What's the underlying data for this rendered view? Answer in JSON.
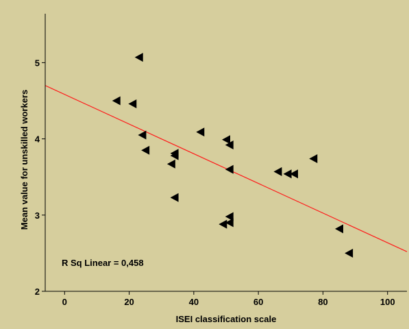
{
  "colors": {
    "background": "#d6ce9d",
    "marker": "#000000",
    "fit_line": "#ff1a1a",
    "axis": "#000000"
  },
  "chart_data": {
    "type": "scatter",
    "title": "",
    "xlabel": "ISEI classification scale",
    "ylabel": "Mean value for unskilled workers",
    "xlim": [
      -6,
      106
    ],
    "ylim": [
      2,
      5.75
    ],
    "x_ticks": [
      0,
      20,
      40,
      60,
      80,
      100
    ],
    "y_ticks": [
      2,
      3,
      4,
      5
    ],
    "grid": false,
    "marker": "left-triangle",
    "points": [
      {
        "x": 23,
        "y": 5.07
      },
      {
        "x": 16,
        "y": 4.5
      },
      {
        "x": 21,
        "y": 4.46
      },
      {
        "x": 24,
        "y": 4.05
      },
      {
        "x": 42,
        "y": 4.09
      },
      {
        "x": 25,
        "y": 3.85
      },
      {
        "x": 50,
        "y": 3.99
      },
      {
        "x": 51,
        "y": 3.92
      },
      {
        "x": 34,
        "y": 3.81
      },
      {
        "x": 34,
        "y": 3.78
      },
      {
        "x": 33,
        "y": 3.67
      },
      {
        "x": 51,
        "y": 3.6
      },
      {
        "x": 66,
        "y": 3.57
      },
      {
        "x": 69,
        "y": 3.54
      },
      {
        "x": 71,
        "y": 3.54
      },
      {
        "x": 77,
        "y": 3.74
      },
      {
        "x": 34,
        "y": 3.23
      },
      {
        "x": 51,
        "y": 2.98
      },
      {
        "x": 51,
        "y": 2.9
      },
      {
        "x": 49,
        "y": 2.88
      },
      {
        "x": 85,
        "y": 2.82
      },
      {
        "x": 88,
        "y": 2.5
      }
    ],
    "fit_line": {
      "type": "linear",
      "x": [
        -6,
        106
      ],
      "y": [
        4.7,
        2.52
      ]
    },
    "annotation": "R Sq Linear = 0,458"
  }
}
